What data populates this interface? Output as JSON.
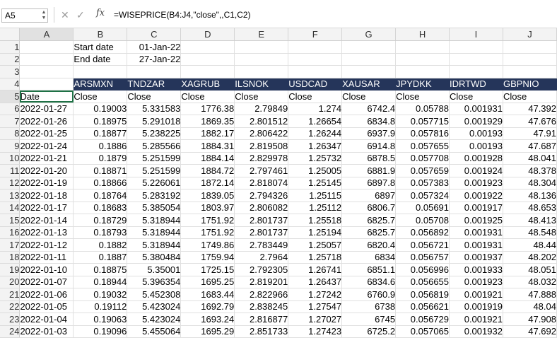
{
  "formula_bar": {
    "name_box": "A5",
    "fx_label": "fx",
    "formula": "=WISEPRICE(B4:J4,\"close\",,C1,C2)"
  },
  "columns": [
    "A",
    "B",
    "C",
    "D",
    "E",
    "F",
    "G",
    "H",
    "I",
    "J"
  ],
  "params": {
    "start_label": "Start date",
    "start_value": "01-Jan-22",
    "end_label": "End date",
    "end_value": "27-Jan-22"
  },
  "tickers": [
    "ARSMXN",
    "TNDZAR",
    "XAGRUB",
    "ILSNOK",
    "USDCAD",
    "XAUSAR",
    "JPYDKK",
    "IDRTWD",
    "GBPNIO"
  ],
  "field_header": [
    "Date",
    "Close",
    "Close",
    "Close",
    "Close",
    "Close",
    "Close",
    "Close",
    "Close",
    "Close"
  ],
  "rows": [
    [
      "2022-01-27",
      "0.19003",
      "5.331583",
      "1776.38",
      "2.79849",
      "1.274",
      "6742.4",
      "0.05788",
      "0.001931",
      "47.392"
    ],
    [
      "2022-01-26",
      "0.18975",
      "5.291018",
      "1869.35",
      "2.801512",
      "1.26654",
      "6834.8",
      "0.057715",
      "0.001929",
      "47.676"
    ],
    [
      "2022-01-25",
      "0.18877",
      "5.238225",
      "1882.17",
      "2.806422",
      "1.26244",
      "6937.9",
      "0.057816",
      "0.00193",
      "47.91"
    ],
    [
      "2022-01-24",
      "0.1886",
      "5.285566",
      "1884.31",
      "2.819508",
      "1.26347",
      "6914.8",
      "0.057655",
      "0.00193",
      "47.687"
    ],
    [
      "2022-01-21",
      "0.1879",
      "5.251599",
      "1884.14",
      "2.829978",
      "1.25732",
      "6878.5",
      "0.057708",
      "0.001928",
      "48.041"
    ],
    [
      "2022-01-20",
      "0.18871",
      "5.251599",
      "1884.72",
      "2.797461",
      "1.25005",
      "6881.9",
      "0.057659",
      "0.001924",
      "48.378"
    ],
    [
      "2022-01-19",
      "0.18866",
      "5.226061",
      "1872.14",
      "2.818074",
      "1.25145",
      "6897.8",
      "0.057383",
      "0.001923",
      "48.304"
    ],
    [
      "2022-01-18",
      "0.18764",
      "5.283192",
      "1839.05",
      "2.794326",
      "1.25115",
      "6897",
      "0.057324",
      "0.001922",
      "48.136"
    ],
    [
      "2022-01-17",
      "0.18683",
      "5.385054",
      "1803.97",
      "2.806082",
      "1.25112",
      "6806.7",
      "0.05691",
      "0.001917",
      "48.653"
    ],
    [
      "2022-01-14",
      "0.18729",
      "5.318944",
      "1751.92",
      "2.801737",
      "1.25518",
      "6825.7",
      "0.05708",
      "0.001925",
      "48.413"
    ],
    [
      "2022-01-13",
      "0.18793",
      "5.318944",
      "1751.92",
      "2.801737",
      "1.25194",
      "6825.7",
      "0.056892",
      "0.001931",
      "48.548"
    ],
    [
      "2022-01-12",
      "0.1882",
      "5.318944",
      "1749.86",
      "2.783449",
      "1.25057",
      "6820.4",
      "0.056721",
      "0.001931",
      "48.44"
    ],
    [
      "2022-01-11",
      "0.1887",
      "5.380484",
      "1759.94",
      "2.7964",
      "1.25718",
      "6834",
      "0.056757",
      "0.001937",
      "48.202"
    ],
    [
      "2022-01-10",
      "0.18875",
      "5.35001",
      "1725.15",
      "2.792305",
      "1.26741",
      "6851.1",
      "0.056996",
      "0.001933",
      "48.051"
    ],
    [
      "2022-01-07",
      "0.18944",
      "5.396354",
      "1695.25",
      "2.819201",
      "1.26437",
      "6834.6",
      "0.056655",
      "0.001923",
      "48.032"
    ],
    [
      "2022-01-06",
      "0.19032",
      "5.452308",
      "1683.44",
      "2.822966",
      "1.27242",
      "6760.9",
      "0.056819",
      "0.001921",
      "47.888"
    ],
    [
      "2022-01-05",
      "0.19112",
      "5.423024",
      "1692.79",
      "2.838245",
      "1.27547",
      "6738",
      "0.056621",
      "0.001919",
      "48.04"
    ],
    [
      "2022-01-04",
      "0.19063",
      "5.423024",
      "1693.24",
      "2.816877",
      "1.27027",
      "6745",
      "0.056729",
      "0.001921",
      "47.908"
    ],
    [
      "2022-01-03",
      "0.19096",
      "5.455064",
      "1695.29",
      "2.851733",
      "1.27423",
      "6725.2",
      "0.057065",
      "0.001932",
      "47.692"
    ]
  ],
  "colors": {
    "header_fill": "#25355a",
    "header_text": "#ffffff",
    "selection": "#1e7145"
  }
}
